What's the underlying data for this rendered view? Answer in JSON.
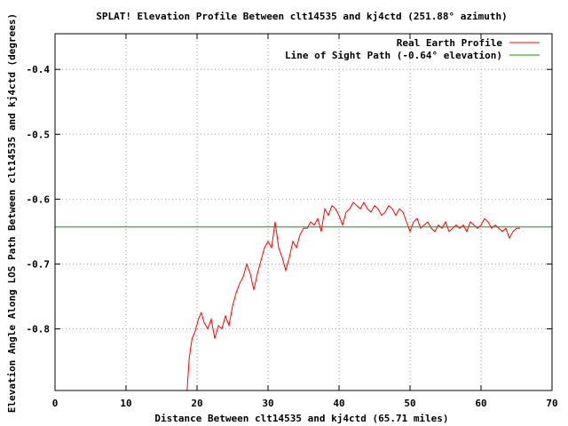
{
  "chart_data": {
    "type": "line",
    "title": "SPLAT! Elevation Profile Between clt14535 and kj4ctd (251.88° azimuth)",
    "xlabel": "Distance Between clt14535 and kj4ctd (65.71 miles)",
    "ylabel": "Elevation Angle Along LOS Path Between clt14535 and kj4ctd (degrees)",
    "xlim": [
      0,
      70
    ],
    "ylim": [
      -0.895,
      -0.345
    ],
    "x_ticks": [
      "0",
      "10",
      "20",
      "30",
      "40",
      "50",
      "60",
      "70"
    ],
    "x_tick_values": [
      0,
      10,
      20,
      30,
      40,
      50,
      60,
      70
    ],
    "y_ticks": [
      "-0.4",
      "-0.5",
      "-0.6",
      "-0.7",
      "-0.8"
    ],
    "y_tick_values": [
      -0.4,
      -0.5,
      -0.6,
      -0.7,
      -0.8
    ],
    "grid": true,
    "legend_position": "top-right",
    "series": [
      {
        "name": "Real Earth Profile",
        "color": "#ff0000",
        "x": [
          18.6,
          18.9,
          19.3,
          19.7,
          20.2,
          20.6,
          21.0,
          21.5,
          22.0,
          22.5,
          23.0,
          23.5,
          24.0,
          24.5,
          25.0,
          25.5,
          26.0,
          26.5,
          27.0,
          27.5,
          28.0,
          28.5,
          29.0,
          29.5,
          30.0,
          30.5,
          31.0,
          31.5,
          32.0,
          32.5,
          33.0,
          33.5,
          34.0,
          34.5,
          35.0,
          35.5,
          36.0,
          36.5,
          37.0,
          37.5,
          38.0,
          38.5,
          39.0,
          39.5,
          40.0,
          40.5,
          41.0,
          41.5,
          42.0,
          42.5,
          43.0,
          43.5,
          44.0,
          44.5,
          45.0,
          45.5,
          46.0,
          46.5,
          47.0,
          47.5,
          48.0,
          48.5,
          49.0,
          49.5,
          50.0,
          50.5,
          51.0,
          51.5,
          52.0,
          52.5,
          53.0,
          53.5,
          54.0,
          54.5,
          55.0,
          55.5,
          56.0,
          56.5,
          57.0,
          57.5,
          58.0,
          58.5,
          59.0,
          59.5,
          60.0,
          60.5,
          61.0,
          61.5,
          62.0,
          62.5,
          63.0,
          63.5,
          64.0,
          64.5,
          65.0,
          65.5
        ],
        "y": [
          -0.895,
          -0.845,
          -0.815,
          -0.805,
          -0.785,
          -0.775,
          -0.79,
          -0.8,
          -0.785,
          -0.815,
          -0.795,
          -0.8,
          -0.78,
          -0.795,
          -0.765,
          -0.745,
          -0.73,
          -0.72,
          -0.7,
          -0.715,
          -0.74,
          -0.715,
          -0.695,
          -0.675,
          -0.665,
          -0.675,
          -0.635,
          -0.675,
          -0.69,
          -0.71,
          -0.69,
          -0.665,
          -0.675,
          -0.655,
          -0.645,
          -0.645,
          -0.635,
          -0.64,
          -0.63,
          -0.65,
          -0.615,
          -0.625,
          -0.61,
          -0.615,
          -0.625,
          -0.64,
          -0.62,
          -0.615,
          -0.605,
          -0.61,
          -0.615,
          -0.605,
          -0.615,
          -0.62,
          -0.61,
          -0.615,
          -0.625,
          -0.62,
          -0.61,
          -0.615,
          -0.625,
          -0.615,
          -0.62,
          -0.635,
          -0.65,
          -0.635,
          -0.63,
          -0.645,
          -0.64,
          -0.635,
          -0.645,
          -0.65,
          -0.64,
          -0.645,
          -0.635,
          -0.65,
          -0.645,
          -0.64,
          -0.645,
          -0.64,
          -0.65,
          -0.635,
          -0.64,
          -0.645,
          -0.64,
          -0.63,
          -0.635,
          -0.645,
          -0.64,
          -0.645,
          -0.65,
          -0.645,
          -0.66,
          -0.65,
          -0.645,
          -0.645
        ]
      },
      {
        "name": "Line of Sight Path (-0.64° elevation)",
        "color": "#00a000",
        "x": [
          0,
          70
        ],
        "y": [
          -0.643,
          -0.643
        ]
      }
    ]
  }
}
